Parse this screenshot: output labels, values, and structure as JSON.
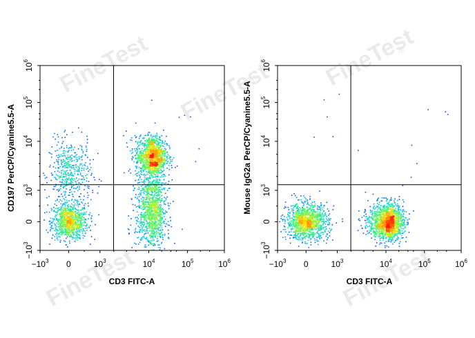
{
  "watermark": {
    "text": "FineTest",
    "mark": "®"
  },
  "colors": {
    "low": "#0000ff",
    "mid1": "#00b7ff",
    "mid2": "#2eff6a",
    "mid3": "#ffe400",
    "high": "#ff1a00",
    "gate": "#000000"
  },
  "chart_data": [
    {
      "type": "scatter",
      "subtype": "flow-cytometry-density",
      "xlabel": "CD3 FITC-A",
      "ylabel": "CD197 PerCP/Cyanine5.5-A",
      "x_ticks": [
        "-10^3",
        "0",
        "10^3",
        "10^4",
        "10^5",
        "10^6"
      ],
      "y_ticks": [
        "-10^3",
        "0",
        "10^3",
        "10^4",
        "10^5",
        "10^6"
      ],
      "scale": "biexponential",
      "xlim": [
        "-10^3",
        "10^6"
      ],
      "ylim": [
        "-10^3",
        "10^6"
      ],
      "gate": {
        "x": 1900,
        "y": 1300
      },
      "populations": [
        {
          "x": 0,
          "y": 0,
          "sx": 300,
          "sy": 300,
          "n": 900
        },
        {
          "x": 0,
          "y": 2200,
          "sx": 350,
          "sy": 0.35,
          "n": 500
        },
        {
          "x": 12000,
          "y": 5000,
          "sx": 0.18,
          "sy": 0.22,
          "n": 1300
        },
        {
          "x": 12000,
          "y": 300,
          "sx": 0.18,
          "sy": 600,
          "n": 1100
        }
      ]
    },
    {
      "type": "scatter",
      "subtype": "flow-cytometry-density",
      "xlabel": "CD3 FITC-A",
      "ylabel": "Mouse IgG2a PerCP/Cyanine5.5-A",
      "x_ticks": [
        "-10^3",
        "0",
        "10^3",
        "10^4",
        "10^5",
        "10^6"
      ],
      "y_ticks": [
        "-10^3",
        "0",
        "10^3",
        "10^4",
        "10^5",
        "10^6"
      ],
      "scale": "biexponential",
      "xlim": [
        "-10^3",
        "10^6"
      ],
      "ylim": [
        "-10^3",
        "10^6"
      ],
      "gate": {
        "x": 1900,
        "y": 1300
      },
      "populations": [
        {
          "x": 0,
          "y": 0,
          "sx": 350,
          "sy": 300,
          "n": 1200
        },
        {
          "x": 11000,
          "y": 0,
          "sx": 0.2,
          "sy": 300,
          "n": 1500
        }
      ]
    }
  ]
}
